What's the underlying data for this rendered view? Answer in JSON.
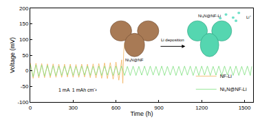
{
  "chart_data": {
    "type": "line",
    "xlabel": "Time (h)",
    "ylabel": "Voltage (mV)",
    "xlim": [
      0,
      1560
    ],
    "xticks": [
      0,
      300,
      600,
      900,
      1200,
      1500
    ],
    "ylim": [
      -100,
      200
    ],
    "yticks": [
      -100,
      -50,
      0,
      50,
      100,
      150,
      200
    ],
    "grid": false,
    "legend": "lower right",
    "annotations": [
      "1 mA  1 mAh cm⁻²",
      "Ni₃N@NF",
      "Ni₃N@NF-Li",
      "Li deposition",
      "Li⁺"
    ],
    "series": [
      {
        "name": "NF-Li",
        "color": "#f2b25c",
        "x": [
          0,
          20,
          40,
          60,
          80,
          100,
          120,
          140,
          160,
          180,
          200,
          220,
          240,
          260,
          280,
          300,
          320,
          340,
          360,
          380,
          400,
          420,
          440,
          460,
          480,
          500,
          520,
          540,
          560,
          580,
          600,
          620,
          640,
          648,
          654,
          660
        ],
        "values": [
          25,
          -24,
          24,
          -23,
          23,
          -22,
          22,
          -22,
          22,
          -21,
          21,
          -21,
          21,
          -20,
          21,
          -21,
          20,
          -21,
          21,
          -20,
          21,
          -22,
          22,
          -23,
          23,
          -24,
          25,
          -25,
          26,
          -27,
          28,
          -30,
          35,
          -40,
          60,
          90
        ]
      },
      {
        "name": "Ni₃N@NF-Li",
        "color": "#7ee07e",
        "x": [
          0,
          20,
          40,
          60,
          80,
          100,
          120,
          140,
          160,
          180,
          200,
          220,
          240,
          260,
          280,
          300,
          320,
          340,
          360,
          380,
          400,
          420,
          440,
          460,
          480,
          500,
          520,
          540,
          560,
          580,
          600,
          620,
          640,
          660,
          680,
          700,
          720,
          740,
          760,
          780,
          800,
          820,
          840,
          860,
          880,
          900,
          920,
          940,
          960,
          980,
          1000,
          1020,
          1040,
          1060,
          1080,
          1100,
          1120,
          1140,
          1160,
          1180,
          1200,
          1220,
          1240,
          1260,
          1280,
          1300,
          1320,
          1340,
          1360,
          1380,
          1400,
          1420,
          1440,
          1460,
          1480,
          1500,
          1520,
          1540,
          1550
        ],
        "values": [
          20,
          -19,
          19,
          -18,
          18,
          -17,
          17,
          -16,
          16,
          -16,
          15,
          -15,
          15,
          -14,
          15,
          -15,
          14,
          -15,
          15,
          -14,
          15,
          -15,
          14,
          -14,
          15,
          -15,
          15,
          -14,
          14,
          -15,
          15,
          -14,
          15,
          -15,
          14,
          -15,
          15,
          -15,
          14,
          -14,
          15,
          -15,
          15,
          -14,
          14,
          -15,
          15,
          -15,
          14,
          -14,
          15,
          -15,
          14,
          -15,
          15,
          -14,
          15,
          -15,
          14,
          -15,
          15,
          -14,
          15,
          -15,
          14,
          -14,
          15,
          -15,
          15,
          -14,
          14,
          -15,
          15,
          -15,
          14,
          -14,
          15,
          -15,
          14
        ]
      }
    ]
  }
}
